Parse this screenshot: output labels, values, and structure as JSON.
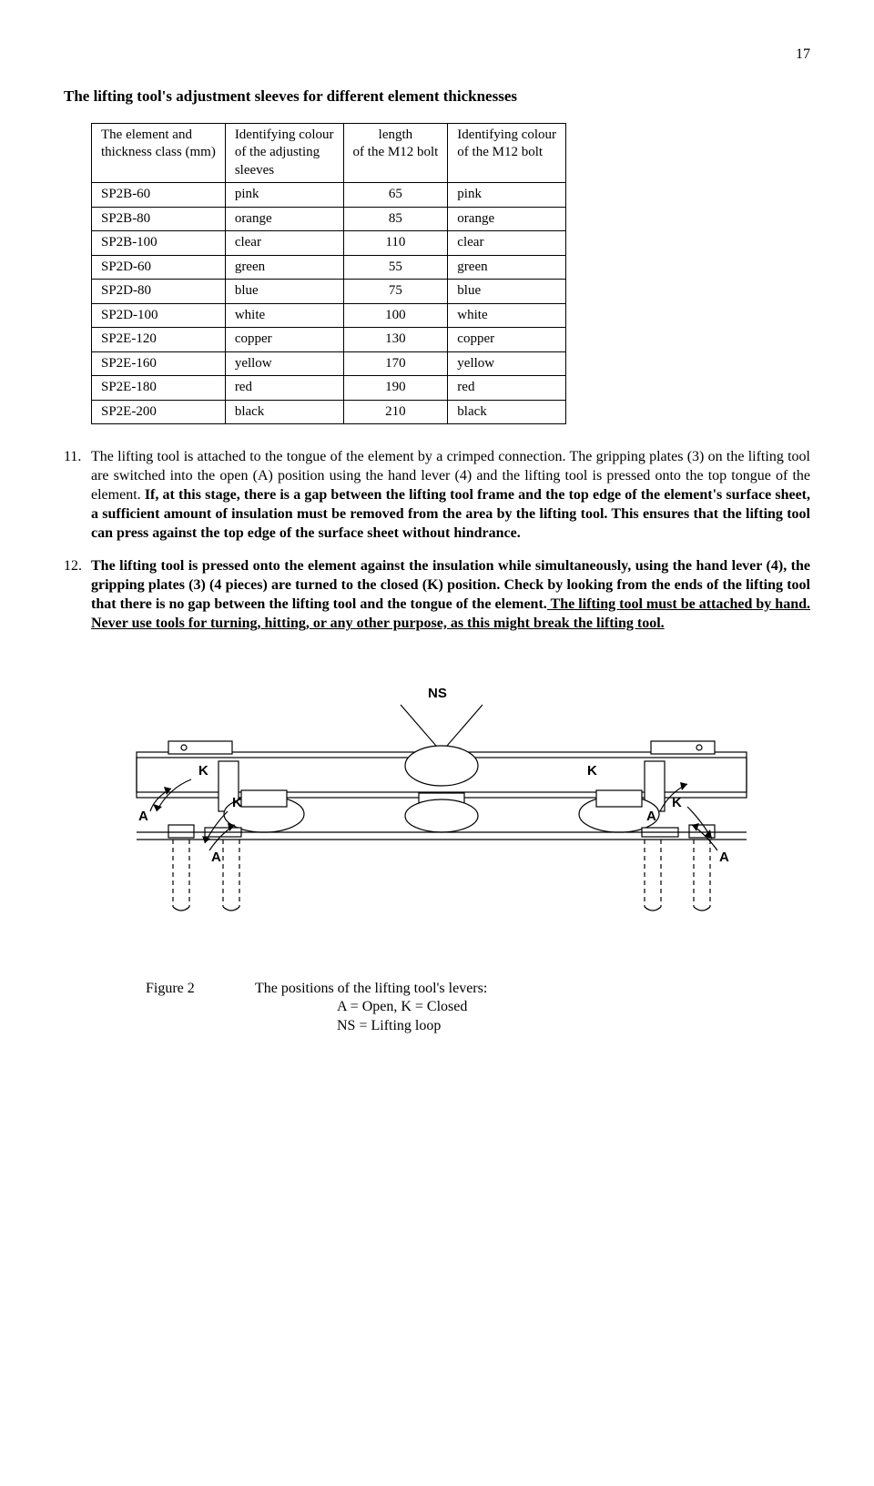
{
  "page_number": "17",
  "section_title": "The lifting tool's adjustment sleeves for different element thicknesses",
  "table": {
    "headers": [
      "The element and\nthickness class (mm)",
      "Identifying colour\nof the adjusting\nsleeves",
      "length\nof the M12 bolt",
      "Identifying colour\nof the M12 bolt"
    ],
    "rows": [
      [
        "SP2B-60",
        "pink",
        "65",
        "pink"
      ],
      [
        "SP2B-80",
        "orange",
        "85",
        "orange"
      ],
      [
        "SP2B-100",
        "clear",
        "110",
        "clear"
      ],
      [
        "SP2D-60",
        "green",
        "55",
        "green"
      ],
      [
        "SP2D-80",
        "blue",
        "75",
        "blue"
      ],
      [
        "SP2D-100",
        "white",
        "100",
        "white"
      ],
      [
        "SP2E-120",
        "copper",
        "130",
        "copper"
      ],
      [
        "SP2E-160",
        "yellow",
        "170",
        "yellow"
      ],
      [
        "SP2E-180",
        "red",
        "190",
        "red"
      ],
      [
        "SP2E-200",
        "black",
        "210",
        "black"
      ]
    ]
  },
  "item11": {
    "num": "11.",
    "text_plain": "The lifting tool is attached to the tongue of the element by a crimped connection. The gripping plates (3) on the lifting tool are switched into the open (A) position using the hand lever (4) and the lifting tool is pressed onto the top tongue of the element. ",
    "text_bold": "If, at this stage, there is a gap between the lifting tool frame and the top edge of the element's surface sheet, a sufficient amount of insulation must be removed from the area by the lifting tool. This ensures that the lifting tool can press against the top edge of the surface sheet without hindrance."
  },
  "item12": {
    "num": "12.",
    "text_bold1": "The lifting tool is pressed onto the element against the insulation while simultaneously, using the hand lever (4), the gripping plates (3) (4 pieces) are turned to the closed (K) position. Check by looking from the ends of the lifting tool that there is no gap between the lifting tool and the tongue of the element.",
    "text_bold_underline1": " The lifting tool must be attached by hand. ",
    "text_bold_underline2": "Never use tools for turning, hitting, or any other purpose, as this might break the lifting tool."
  },
  "figure": {
    "label": "Figure 2",
    "caption_line1": "The positions of the lifting tool's levers:",
    "caption_line2": "A = Open, K = Closed",
    "caption_line3": "NS = Lifting loop",
    "labels": {
      "NS": "NS",
      "K": "K",
      "A": "A"
    }
  },
  "diagram_style": {
    "stroke": "#000000",
    "stroke_width": 1.2,
    "fill": "#ffffff",
    "font_family": "Arial",
    "font_size": 15,
    "font_weight": "bold"
  }
}
